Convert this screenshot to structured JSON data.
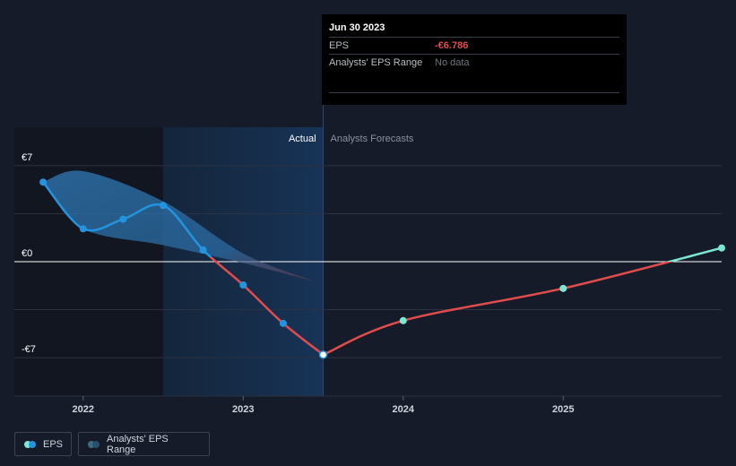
{
  "tooltip": {
    "date": "Jun 30 2023",
    "rows": [
      {
        "label": "EPS",
        "value": "-€6.786"
      },
      {
        "label": "Analysts' EPS Range",
        "value": "No data"
      }
    ]
  },
  "labels": {
    "actual": "Actual",
    "forecast": "Analysts Forecasts"
  },
  "legend": {
    "eps_label": "EPS",
    "range_label": "Analysts' EPS Range"
  },
  "colors": {
    "background": "#151b28",
    "eps_actual_positive": "#2394df",
    "eps_actual_negative": "#e24c4c",
    "eps_forecast_negative": "#e24c4c",
    "eps_forecast_positive": "#7be8d2",
    "range_fill": "#2c6fa8",
    "highlight_band": "#163150"
  },
  "chart_data": {
    "type": "line",
    "xlabel": "",
    "ylabel": "",
    "y_ticks": [
      {
        "value": 7,
        "label": "€7"
      },
      {
        "value": 0,
        "label": "€0"
      },
      {
        "value": -7,
        "label": "-€7"
      }
    ],
    "x_ticks": [
      {
        "value": 2022.0,
        "label": "2022"
      },
      {
        "value": 2023.0,
        "label": "2023"
      },
      {
        "value": 2024.0,
        "label": "2024"
      },
      {
        "value": 2025.0,
        "label": "2025"
      }
    ],
    "xlim": [
      2021.57,
      2025.99
    ],
    "ylim": [
      -7.0,
      7.0
    ],
    "grid": true,
    "actual_forecast_boundary": 2023.5,
    "highlight_band_start": 2022.5,
    "series": [
      {
        "name": "EPS",
        "kind": "actual",
        "points": [
          {
            "x": 2021.75,
            "y": 5.8
          },
          {
            "x": 2022.0,
            "y": 2.4
          },
          {
            "x": 2022.25,
            "y": 3.1
          },
          {
            "x": 2022.5,
            "y": 4.1
          },
          {
            "x": 2022.75,
            "y": 0.85
          },
          {
            "x": 2023.0,
            "y": -1.7
          },
          {
            "x": 2023.25,
            "y": -4.5
          },
          {
            "x": 2023.5,
            "y": -6.786
          }
        ]
      },
      {
        "name": "EPS",
        "kind": "forecast",
        "points": [
          {
            "x": 2023.5,
            "y": -6.786
          },
          {
            "x": 2024.0,
            "y": -4.3
          },
          {
            "x": 2025.0,
            "y": -1.95
          },
          {
            "x": 2025.99,
            "y": 1.0
          }
        ]
      }
    ],
    "range_band": {
      "name": "Analysts' EPS Range",
      "upper": [
        {
          "x": 2021.75,
          "y": 5.8
        },
        {
          "x": 2022.0,
          "y": 6.6
        },
        {
          "x": 2022.5,
          "y": 4.4
        },
        {
          "x": 2023.0,
          "y": 0.6
        },
        {
          "x": 2023.45,
          "y": -1.45
        }
      ],
      "lower": [
        {
          "x": 2021.75,
          "y": 5.8
        },
        {
          "x": 2022.0,
          "y": 2.4
        },
        {
          "x": 2022.5,
          "y": 1.2
        },
        {
          "x": 2023.0,
          "y": -0.1
        },
        {
          "x": 2023.45,
          "y": -1.45
        }
      ]
    }
  }
}
